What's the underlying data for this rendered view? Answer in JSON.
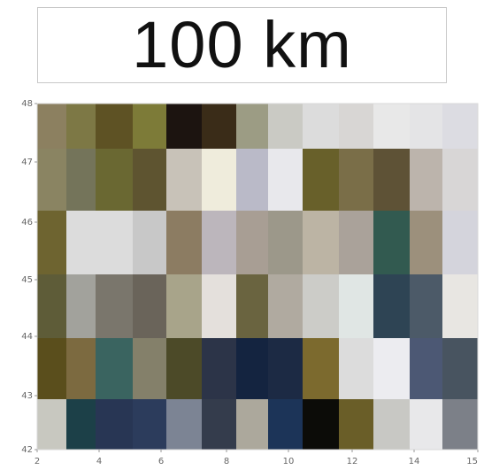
{
  "title": "100 km",
  "chart_data": {
    "type": "heatmap",
    "x_ticks": [
      "2",
      "4",
      "6",
      "8",
      "10",
      "12",
      "14",
      "15"
    ],
    "y_ticks": [
      "48",
      "47",
      "46",
      "45",
      "44",
      "43",
      "42"
    ],
    "cells": [
      [
        "#8c8060",
        "#7d7845",
        "#5e5224",
        "#7d7b38",
        "#1c1410",
        "#3a2c18",
        "#9c9c84",
        "#cacac4",
        "#dcdcdc",
        "#d8d6d4",
        "#e8e8e8",
        "#e4e4e6",
        "#dcdce2"
      ],
      [
        "#8a8462",
        "#74745a",
        "#6a6832",
        "#5e5430",
        "#c8c2b8",
        "#efecdc",
        "#babac8",
        "#e8e8ec",
        "#68602a",
        "#7a6e48",
        "#5e5236",
        "#bcb4ac",
        "#d8d6d6"
      ],
      [
        "#6e6430",
        "#dcdcdc",
        "#dcdcdc",
        "#c8c8c8",
        "#8c7c62",
        "#bcb6bc",
        "#a89e94",
        "#9c988a",
        "#bcb4a4",
        "#aaa29a",
        "#325a50",
        "#9c907c",
        "#d4d4dc"
      ],
      [
        "#5e5c38",
        "#a2a29c",
        "#7a766c",
        "#6a645a",
        "#a8a48a",
        "#e4e0dc",
        "#6a6440",
        "#b0aaa0",
        "#ccccc8",
        "#e0e6e4",
        "#2e4454",
        "#4c5a68",
        "#e8e6e2"
      ],
      [
        "#5a4e1c",
        "#7c6a40",
        "#3a6460",
        "#84806a",
        "#4c4a28",
        "#2c3448",
        "#142440",
        "#1c2a44",
        "#7c6a2e",
        "#dcdcdc",
        "#ececf0",
        "#4c5874",
        "#485460"
      ],
      [
        "#c8c8c0",
        "#1c4048",
        "#283654",
        "#2c3c5c",
        "#7c8494",
        "#343c4c",
        "#aca89c",
        "#1c3458",
        "#0c0c08",
        "#6a5e28",
        "#c8c8c4",
        "#e8e8ea",
        "#7c8088"
      ]
    ]
  }
}
